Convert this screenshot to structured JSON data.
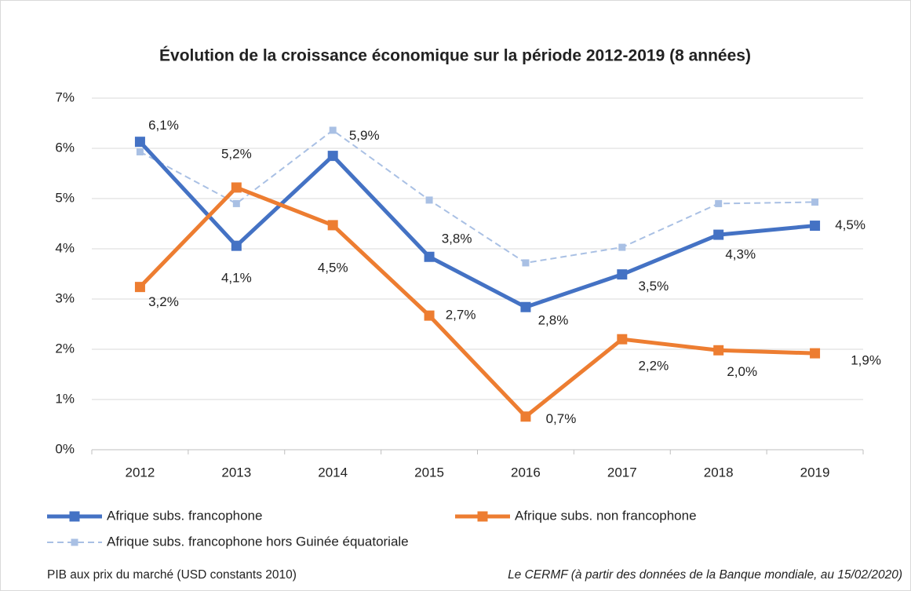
{
  "chart_data": {
    "type": "line",
    "title": "Évolution de la croissance économique sur la période 2012-2019  (8 années)",
    "categories": [
      "2012",
      "2013",
      "2014",
      "2015",
      "2016",
      "2017",
      "2018",
      "2019"
    ],
    "series": [
      {
        "name": "Afrique subs. francophone",
        "color": "#4472c4",
        "line_style": "solid",
        "values": [
          6.13,
          4.06,
          5.85,
          3.84,
          2.84,
          3.49,
          4.28,
          4.46
        ],
        "value_labels": [
          "6,1%",
          "4,1%",
          "5,9%",
          "3,8%",
          "2,8%",
          "3,5%",
          "4,3%",
          "4,5%"
        ]
      },
      {
        "name": "Afrique subs. non francophone",
        "color": "#ed7d31",
        "line_style": "solid",
        "values": [
          3.24,
          5.22,
          4.47,
          2.67,
          0.66,
          2.2,
          1.98,
          1.92
        ],
        "value_labels": [
          "3,2%",
          "5,2%",
          "4,5%",
          "2,7%",
          "0,7%",
          "2,2%",
          "2,0%",
          "1,9%"
        ]
      },
      {
        "name": "Afrique subs. francophone hors Guinée équatoriale",
        "color": "#a9c0e4",
        "line_style": "dashed",
        "values": [
          5.93,
          4.9,
          6.36,
          4.97,
          3.72,
          4.03,
          4.9,
          4.93
        ]
      }
    ],
    "ylim": [
      0,
      7
    ],
    "yticks": [
      {
        "value": 0,
        "label": "0%"
      },
      {
        "value": 1,
        "label": "1%"
      },
      {
        "value": 2,
        "label": "2%"
      },
      {
        "value": 3,
        "label": "3%"
      },
      {
        "value": 4,
        "label": "4%"
      },
      {
        "value": 5,
        "label": "5%"
      },
      {
        "value": 6,
        "label": "6%"
      },
      {
        "value": 7,
        "label": "7%"
      }
    ],
    "grid": true,
    "notes": [
      "PIB aux prix du marché (USD constants 2010)",
      "Le CERMF (à partir des données de la Banque mondiale, au 15/02/2020)"
    ]
  }
}
